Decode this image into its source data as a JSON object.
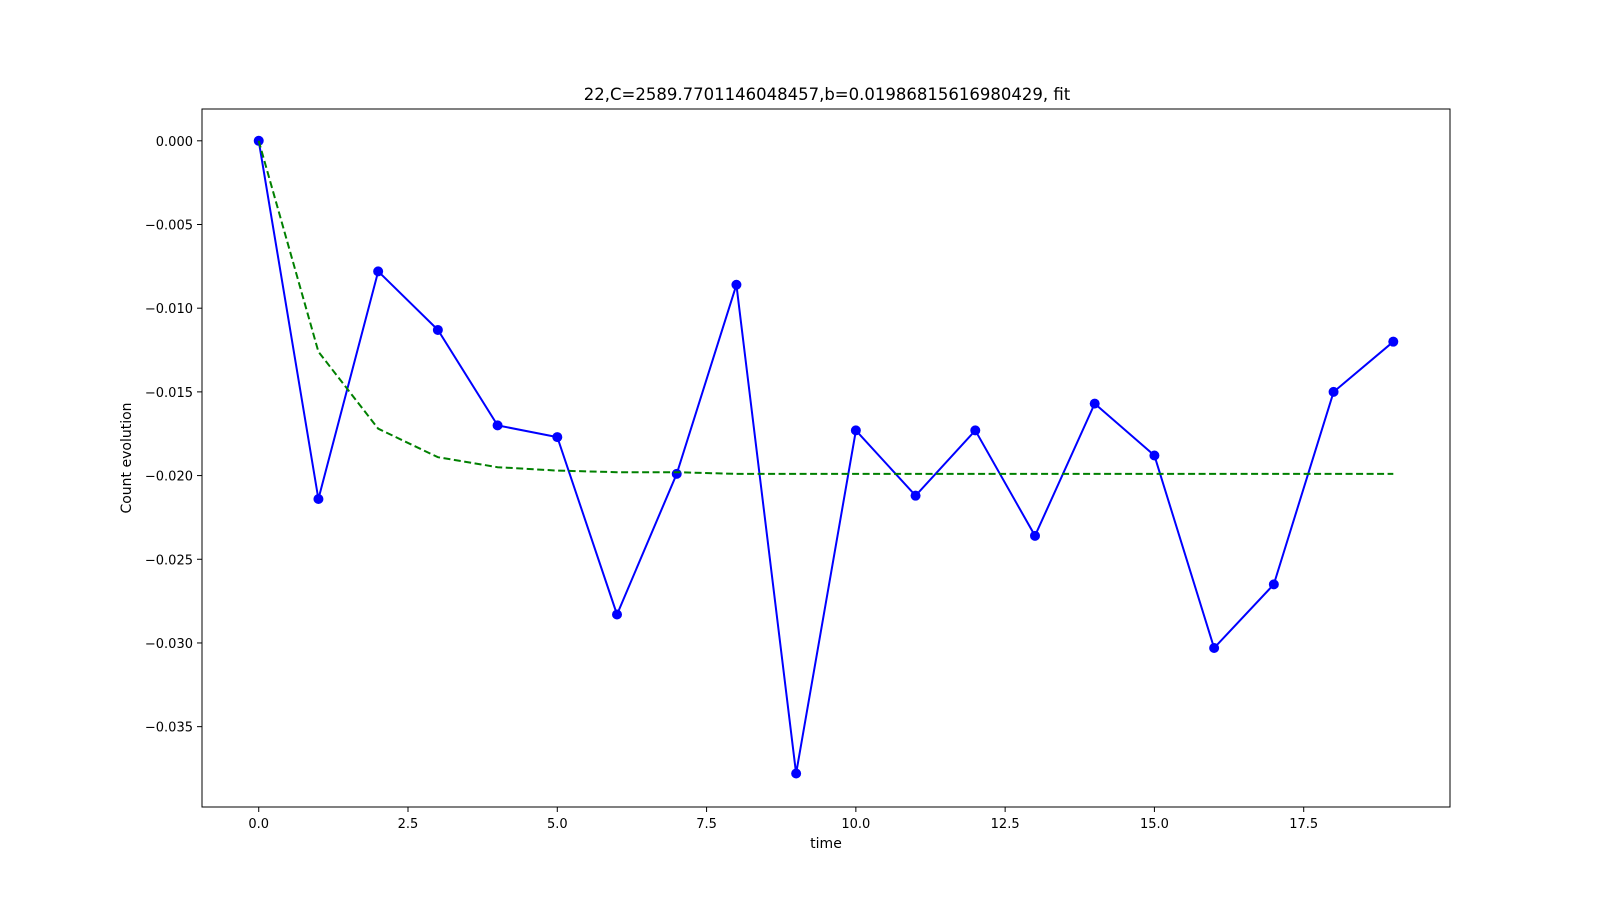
{
  "chart_data": {
    "type": "line",
    "title": "22,C=2589.7701146048457,b=0.01986815616980429, fit",
    "xlabel": "time",
    "ylabel": "Count evolution",
    "xlim": [
      -0.95,
      19.95
    ],
    "ylim": [
      -0.0398,
      0.0019
    ],
    "x_ticks": [
      0.0,
      2.5,
      5.0,
      7.5,
      10.0,
      12.5,
      15.0,
      17.5
    ],
    "x_tick_labels": [
      "0.0",
      "2.5",
      "5.0",
      "7.5",
      "10.0",
      "12.5",
      "15.0",
      "17.5"
    ],
    "y_ticks": [
      0.0,
      -0.005,
      -0.01,
      -0.015,
      -0.02,
      -0.025,
      -0.03,
      -0.035
    ],
    "y_tick_labels": [
      "0.000",
      "−0.005",
      "−0.010",
      "−0.015",
      "−0.020",
      "−0.025",
      "−0.030",
      "−0.035"
    ],
    "grid": false,
    "legend": "none",
    "series": [
      {
        "style": "solid-with-markers",
        "color": "#0000ff",
        "x": [
          0,
          1,
          2,
          3,
          4,
          5,
          6,
          7,
          8,
          9,
          10,
          11,
          12,
          13,
          14,
          15,
          16,
          17,
          18,
          19
        ],
        "values": [
          0.0,
          -0.0214,
          -0.0078,
          -0.0113,
          -0.017,
          -0.0177,
          -0.0283,
          -0.0199,
          -0.0086,
          -0.0378,
          -0.0173,
          -0.0212,
          -0.0173,
          -0.0236,
          -0.0157,
          -0.0188,
          -0.0303,
          -0.0265,
          -0.015,
          -0.012
        ]
      },
      {
        "style": "dashed",
        "color": "#008000",
        "x": [
          0,
          1,
          2,
          3,
          4,
          5,
          6,
          7,
          8,
          9,
          10,
          11,
          12,
          13,
          14,
          15,
          16,
          17,
          18,
          19
        ],
        "values": [
          0.0,
          -0.0126,
          -0.0172,
          -0.0189,
          -0.0195,
          -0.0197,
          -0.0198,
          -0.0198,
          -0.0199,
          -0.0199,
          -0.0199,
          -0.0199,
          -0.0199,
          -0.0199,
          -0.0199,
          -0.0199,
          -0.0199,
          -0.0199,
          -0.0199,
          -0.0199
        ]
      }
    ]
  }
}
